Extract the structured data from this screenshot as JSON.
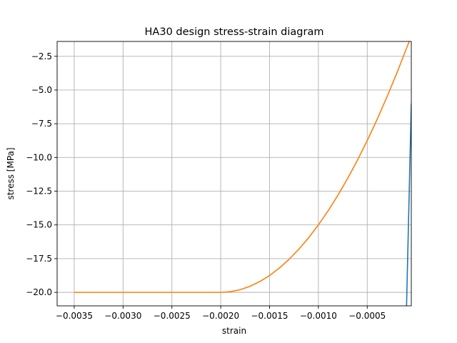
{
  "chart_data": {
    "type": "line",
    "title": "HA30 design stress-strain diagram",
    "xlabel": "strain",
    "ylabel": "stress [MPa]",
    "xlim": [
      -0.003675,
      -4.87e-05
    ],
    "ylim": [
      -21.0,
      -1.4
    ],
    "grid": true,
    "x_ticks": [
      -0.0035,
      -0.003,
      -0.0025,
      -0.002,
      -0.0015,
      -0.001,
      -0.0005
    ],
    "x_tick_labels": [
      "−0.0035",
      "−0.0030",
      "−0.0025",
      "−0.0020",
      "−0.0015",
      "−0.0010",
      "−0.0005"
    ],
    "y_ticks": [
      -2.5,
      -5.0,
      -7.5,
      -10.0,
      -12.5,
      -15.0,
      -17.5,
      -20.0
    ],
    "y_tick_labels": [
      "−2.5",
      "−5.0",
      "−7.5",
      "−10.0",
      "−12.5",
      "−15.0",
      "−17.5",
      "−20.0"
    ],
    "series": [
      {
        "color": "#1f77b4",
        "x": [
          -9.74e-05,
          -4.87e-05
        ],
        "y": [
          -21.0,
          -6.0
        ]
      },
      {
        "color": "#ff7f0e",
        "x": [
          -0.0035,
          -0.003,
          -0.0025,
          -0.002,
          -0.0019,
          -0.0018,
          -0.0017,
          -0.0016,
          -0.0015,
          -0.0014,
          -0.0013,
          -0.0012,
          -0.0011,
          -0.001,
          -0.0009,
          -0.0008,
          -0.0007,
          -0.0006,
          -0.0005,
          -0.0004,
          -0.0003,
          -0.0002,
          -0.0001,
          -4.87e-05
        ],
        "y": [
          -20.0,
          -20.0,
          -20.0,
          -20.0,
          -19.95,
          -19.8,
          -19.55,
          -19.2,
          -18.75,
          -18.2,
          -17.55,
          -16.8,
          -15.95,
          -15.0,
          -13.95,
          -12.8,
          -11.55,
          -10.2,
          -8.75,
          -7.2,
          -5.55,
          -3.8,
          -1.95,
          -1.0
        ]
      }
    ]
  }
}
